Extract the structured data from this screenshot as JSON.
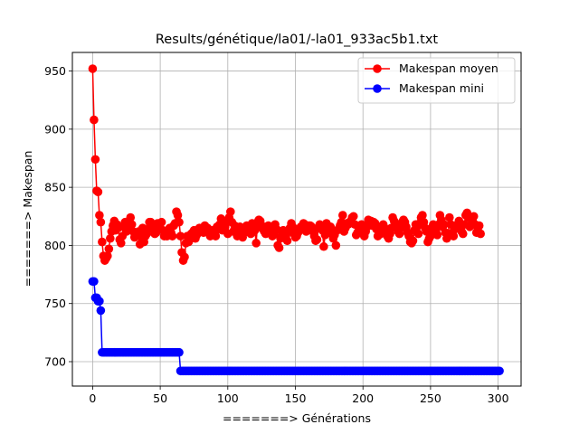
{
  "chart_data": {
    "type": "line",
    "title": "Results/génétique/la01/-la01_933ac5b1.txt",
    "xlabel": "=======> Générations",
    "ylabel": "=======> Makespan",
    "xlim": [
      -15,
      317
    ],
    "ylim": [
      679,
      966
    ],
    "xticks": [
      0,
      50,
      100,
      150,
      200,
      250,
      300
    ],
    "xtick_labels": [
      "0",
      "50",
      "100",
      "150",
      "200",
      "250",
      "300"
    ],
    "yticks": [
      700,
      750,
      800,
      850,
      900,
      950
    ],
    "ytick_labels": [
      "700",
      "750",
      "800",
      "850",
      "900",
      "950"
    ],
    "grid": true,
    "legend_position": "top-right",
    "marker": "circle",
    "series": [
      {
        "name": "Makespan moyen",
        "color": "#ff0000",
        "values": [
          952,
          908,
          874,
          847,
          846,
          826,
          820,
          803,
          791,
          787,
          789,
          791,
          797,
          806,
          812,
          817,
          821,
          813,
          818,
          815,
          805,
          802,
          808,
          816,
          820,
          812,
          815,
          816,
          824,
          818,
          812,
          807,
          810,
          811,
          812,
          801,
          807,
          815,
          803,
          808,
          810,
          814,
          820,
          820,
          818,
          814,
          810,
          811,
          819,
          815,
          819,
          820,
          813,
          808,
          809,
          808,
          812,
          815,
          811,
          808,
          817,
          819,
          829,
          826,
          820,
          808,
          794,
          787,
          790,
          802,
          808,
          803,
          806,
          810,
          811,
          813,
          806,
          809,
          811,
          815,
          812,
          813,
          811,
          817,
          814,
          815,
          812,
          808,
          810,
          813,
          811,
          808,
          816,
          814,
          818,
          823,
          813,
          814,
          816,
          820,
          810,
          824,
          829,
          820,
          812,
          817,
          814,
          808,
          810,
          816,
          813,
          807,
          811,
          814,
          817,
          816,
          813,
          810,
          819,
          815,
          813,
          802,
          820,
          822,
          821,
          817,
          814,
          812,
          810,
          815,
          817,
          816,
          811,
          808,
          810,
          818,
          814,
          800,
          798,
          806,
          809,
          813,
          811,
          808,
          804,
          812,
          815,
          819,
          816,
          810,
          807,
          808,
          811,
          813,
          816,
          814,
          819,
          818,
          812,
          814,
          817,
          817,
          816,
          812,
          808,
          804,
          805,
          815,
          818,
          817,
          813,
          799,
          809,
          819,
          813,
          811,
          816,
          810,
          806,
          809,
          800,
          813,
          814,
          817,
          820,
          826,
          812,
          815,
          819,
          818,
          820,
          821,
          824,
          825,
          818,
          809,
          811,
          813,
          815,
          818,
          812,
          808,
          812,
          816,
          822,
          818,
          821,
          817,
          820,
          819,
          814,
          808,
          812,
          810,
          816,
          818,
          815,
          811,
          808,
          806,
          810,
          815,
          824,
          821,
          816,
          818,
          812,
          810,
          815,
          820,
          822,
          820,
          816,
          811,
          808,
          803,
          802,
          804,
          813,
          818,
          816,
          810,
          819,
          824,
          826,
          820,
          815,
          812,
          803,
          806,
          808,
          815,
          818,
          814,
          812,
          809,
          818,
          826,
          822,
          816,
          818,
          811,
          806,
          808,
          824,
          818,
          811,
          808,
          814,
          816,
          818,
          821,
          815,
          812,
          810,
          818,
          826,
          828,
          824,
          816,
          818,
          822,
          825,
          818,
          811,
          815,
          817,
          810
        ]
      },
      {
        "name": "Makespan mini",
        "color": "#0000ff",
        "values": [
          769,
          769,
          755,
          755,
          752,
          752,
          744,
          708,
          708,
          708,
          708,
          708,
          708,
          708,
          708,
          708,
          708,
          708,
          708,
          708,
          708,
          708,
          708,
          708,
          708,
          708,
          708,
          708,
          708,
          708,
          708,
          708,
          708,
          708,
          708,
          708,
          708,
          708,
          708,
          708,
          708,
          708,
          708,
          708,
          708,
          708,
          708,
          708,
          708,
          708,
          708,
          708,
          708,
          708,
          708,
          708,
          708,
          708,
          708,
          708,
          708,
          708,
          708,
          708,
          708,
          692,
          692,
          692,
          692,
          692,
          692,
          692,
          692,
          692,
          692,
          692,
          692,
          692,
          692,
          692,
          692,
          692,
          692,
          692,
          692,
          692,
          692,
          692,
          692,
          692,
          692,
          692,
          692,
          692,
          692,
          692,
          692,
          692,
          692,
          692,
          692,
          692,
          692,
          692,
          692,
          692,
          692,
          692,
          692,
          692,
          692,
          692,
          692,
          692,
          692,
          692,
          692,
          692,
          692,
          692,
          692,
          692,
          692,
          692,
          692,
          692,
          692,
          692,
          692,
          692,
          692,
          692,
          692,
          692,
          692,
          692,
          692,
          692,
          692,
          692,
          692,
          692,
          692,
          692,
          692,
          692,
          692,
          692,
          692,
          692,
          692,
          692,
          692,
          692,
          692,
          692,
          692,
          692,
          692,
          692,
          692,
          692,
          692,
          692,
          692,
          692,
          692,
          692,
          692,
          692,
          692,
          692,
          692,
          692,
          692,
          692,
          692,
          692,
          692,
          692,
          692,
          692,
          692,
          692,
          692,
          692,
          692,
          692,
          692,
          692,
          692,
          692,
          692,
          692,
          692,
          692,
          692,
          692,
          692,
          692,
          692,
          692,
          692,
          692,
          692,
          692,
          692,
          692,
          692,
          692,
          692,
          692,
          692,
          692,
          692,
          692,
          692,
          692,
          692,
          692,
          692,
          692,
          692,
          692,
          692,
          692,
          692,
          692,
          692,
          692,
          692,
          692,
          692,
          692,
          692,
          692,
          692,
          692,
          692,
          692,
          692,
          692,
          692,
          692,
          692,
          692,
          692,
          692,
          692,
          692,
          692,
          692,
          692,
          692,
          692,
          692,
          692,
          692,
          692,
          692,
          692,
          692,
          692,
          692,
          692,
          692,
          692,
          692,
          692,
          692,
          692,
          692,
          692,
          692,
          692,
          692,
          692,
          692,
          692,
          692,
          692,
          692,
          692,
          692,
          692,
          692,
          692,
          692,
          692,
          692,
          692,
          692,
          692,
          692,
          692,
          692,
          692,
          692,
          692,
          692,
          692,
          692
        ]
      }
    ]
  }
}
